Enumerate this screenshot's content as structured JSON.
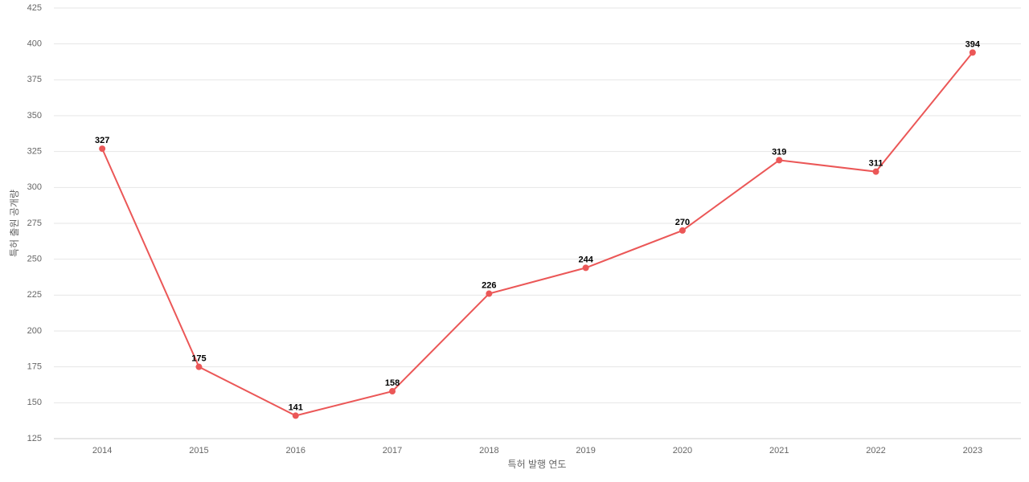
{
  "chart_data": {
    "type": "line",
    "x_label": "특허 발행 연도",
    "y_label": "특허 출원 공개량",
    "categories": [
      "2014",
      "2015",
      "2016",
      "2017",
      "2018",
      "2019",
      "2020",
      "2021",
      "2022",
      "2023"
    ],
    "series": [
      {
        "color": "#eb5757",
        "values": [
          327,
          175,
          141,
          158,
          226,
          244,
          270,
          319,
          311,
          394
        ]
      }
    ],
    "ylim": [
      125,
      425
    ],
    "yticks": [
      125,
      150,
      175,
      200,
      225,
      250,
      275,
      300,
      325,
      350,
      375,
      400,
      425
    ],
    "grid": true
  }
}
